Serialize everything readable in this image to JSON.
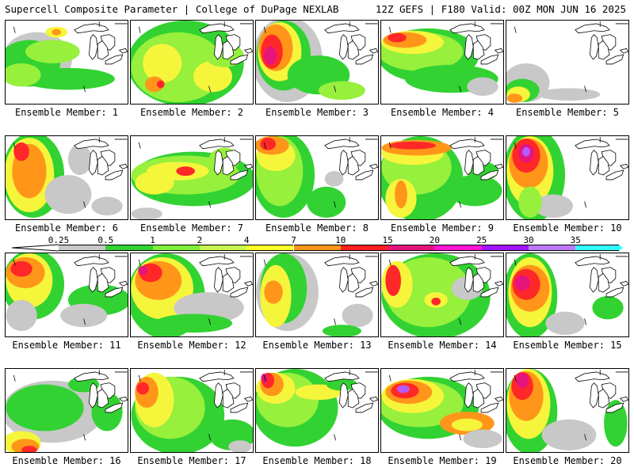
{
  "header": {
    "title": "Supercell Composite Parameter | College of DuPage NEXLAB",
    "run_info": "12Z GEFS | F180 Valid: 00Z MON JUN 16 2025"
  },
  "members": [
    {
      "label": "Ensemble Member: 1"
    },
    {
      "label": "Ensemble Member: 2"
    },
    {
      "label": "Ensemble Member: 3"
    },
    {
      "label": "Ensemble Member: 4"
    },
    {
      "label": "Ensemble Member: 5"
    },
    {
      "label": "Ensemble Member: 6"
    },
    {
      "label": "Ensemble Member: 7"
    },
    {
      "label": "Ensemble Member: 8"
    },
    {
      "label": "Ensemble Member: 9"
    },
    {
      "label": "Ensemble Member: 10"
    },
    {
      "label": "Ensemble Member: 11"
    },
    {
      "label": "Ensemble Member: 12"
    },
    {
      "label": "Ensemble Member: 13"
    },
    {
      "label": "Ensemble Member: 14"
    },
    {
      "label": "Ensemble Member: 15"
    },
    {
      "label": "Ensemble Member: 16"
    },
    {
      "label": "Ensemble Member: 17"
    },
    {
      "label": "Ensemble Member: 18"
    },
    {
      "label": "Ensemble Member: 19"
    },
    {
      "label": "Ensemble Member: 20"
    }
  ],
  "colorbar": {
    "ticks": [
      "0.25",
      "0.5",
      "1",
      "2",
      "4",
      "7",
      "10",
      "15",
      "20",
      "25",
      "30",
      "35"
    ],
    "colors": [
      "#c8c8c8",
      "#32d232",
      "#7df03c",
      "#c8f550",
      "#ffff28",
      "#ff9619",
      "#ff1e1e",
      "#e1147d",
      "#ff14d2",
      "#a014ff",
      "#be78ff",
      "#32ffff"
    ]
  },
  "colors": {
    "gray": "#c8c8c8",
    "green": "#32d232",
    "lightgreen": "#96f03c",
    "yellow": "#f5f53c",
    "orange": "#ff9619",
    "red": "#ff2828",
    "magenta": "#e6147d",
    "purple": "#b45aff"
  }
}
